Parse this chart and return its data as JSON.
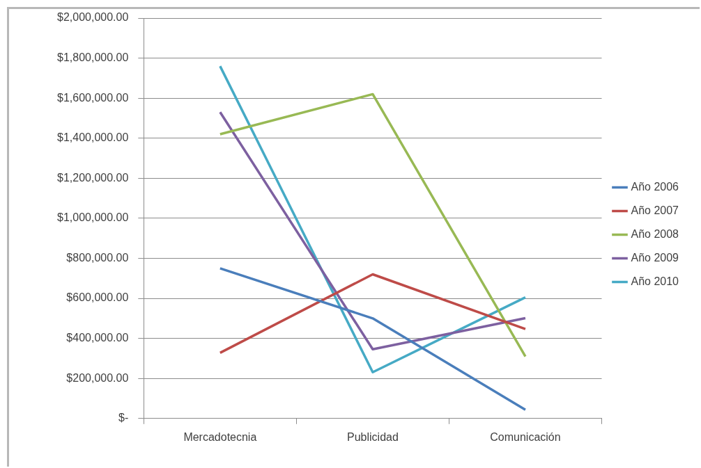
{
  "chart_data": {
    "type": "line",
    "categories": [
      "Mercadotecnia",
      "Publicidad",
      "Comunicación"
    ],
    "series": [
      {
        "name": "Año 2006",
        "color": "#4a7ebb",
        "values": [
          750000,
          500000,
          44000
        ]
      },
      {
        "name": "Año 2007",
        "color": "#be4b48",
        "values": [
          328000,
          720000,
          447000
        ]
      },
      {
        "name": "Año 2008",
        "color": "#98b954",
        "values": [
          1420000,
          1620000,
          310000
        ]
      },
      {
        "name": "Año 2009",
        "color": "#7d60a0",
        "values": [
          1530000,
          346000,
          501000
        ]
      },
      {
        "name": "Año 2010",
        "color": "#46aac5",
        "values": [
          1760000,
          231000,
          605000
        ]
      }
    ],
    "ylim": [
      0,
      2000000
    ],
    "yticks": [
      {
        "value": 0,
        "label": "$-"
      },
      {
        "value": 200000,
        "label": "$200,000.00"
      },
      {
        "value": 400000,
        "label": "$400,000.00"
      },
      {
        "value": 600000,
        "label": "$600,000.00"
      },
      {
        "value": 800000,
        "label": "$800,000.00"
      },
      {
        "value": 1000000,
        "label": "$1,000,000.00"
      },
      {
        "value": 1200000,
        "label": "$1,200,000.00"
      },
      {
        "value": 1400000,
        "label": "$1,400,000.00"
      },
      {
        "value": 1600000,
        "label": "$1,600,000.00"
      },
      {
        "value": 1800000,
        "label": "$1,800,000.00"
      },
      {
        "value": 2000000,
        "label": "$2,000,000.00"
      }
    ],
    "grid": "y",
    "legend": "right",
    "marker": "none",
    "line_style": "solid"
  }
}
